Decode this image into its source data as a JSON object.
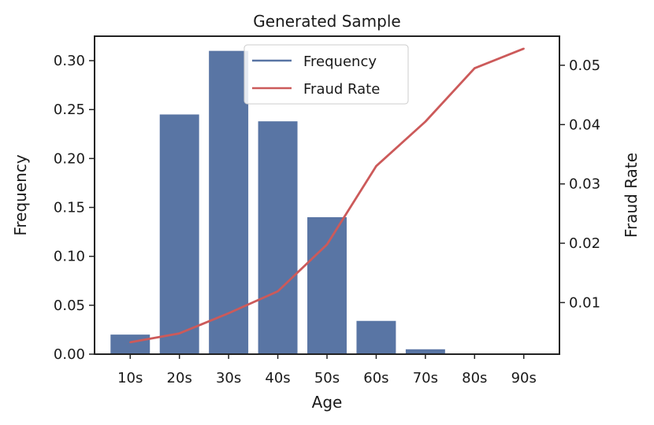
{
  "chart_data": {
    "type": "bar",
    "title": "Generated Sample",
    "xlabel": "Age",
    "ylabel": "Frequency",
    "y2label": "Fraud Rate",
    "categories": [
      "10s",
      "20s",
      "30s",
      "40s",
      "50s",
      "60s",
      "70s",
      "80s",
      "90s"
    ],
    "ylim": [
      0,
      0.325
    ],
    "y2lim": [
      0.0013,
      0.0549
    ],
    "yticks": [
      "0.00",
      "0.05",
      "0.10",
      "0.15",
      "0.20",
      "0.25",
      "0.30"
    ],
    "y2ticks": [
      "0.01",
      "0.02",
      "0.03",
      "0.04",
      "0.05"
    ],
    "series": [
      {
        "name": "Frequency",
        "type": "bar",
        "axis": "left",
        "color": "#5975a4",
        "values": [
          0.02,
          0.245,
          0.31,
          0.238,
          0.14,
          0.034,
          0.005,
          0.0,
          0.0
        ]
      },
      {
        "name": "Fraud Rate",
        "type": "line",
        "axis": "right",
        "color": "#cc5a5a",
        "values": [
          0.0033,
          0.0048,
          0.0082,
          0.0119,
          0.0198,
          0.033,
          0.0405,
          0.0495,
          0.0528
        ]
      }
    ],
    "legend": "upper-center",
    "grid": false
  }
}
